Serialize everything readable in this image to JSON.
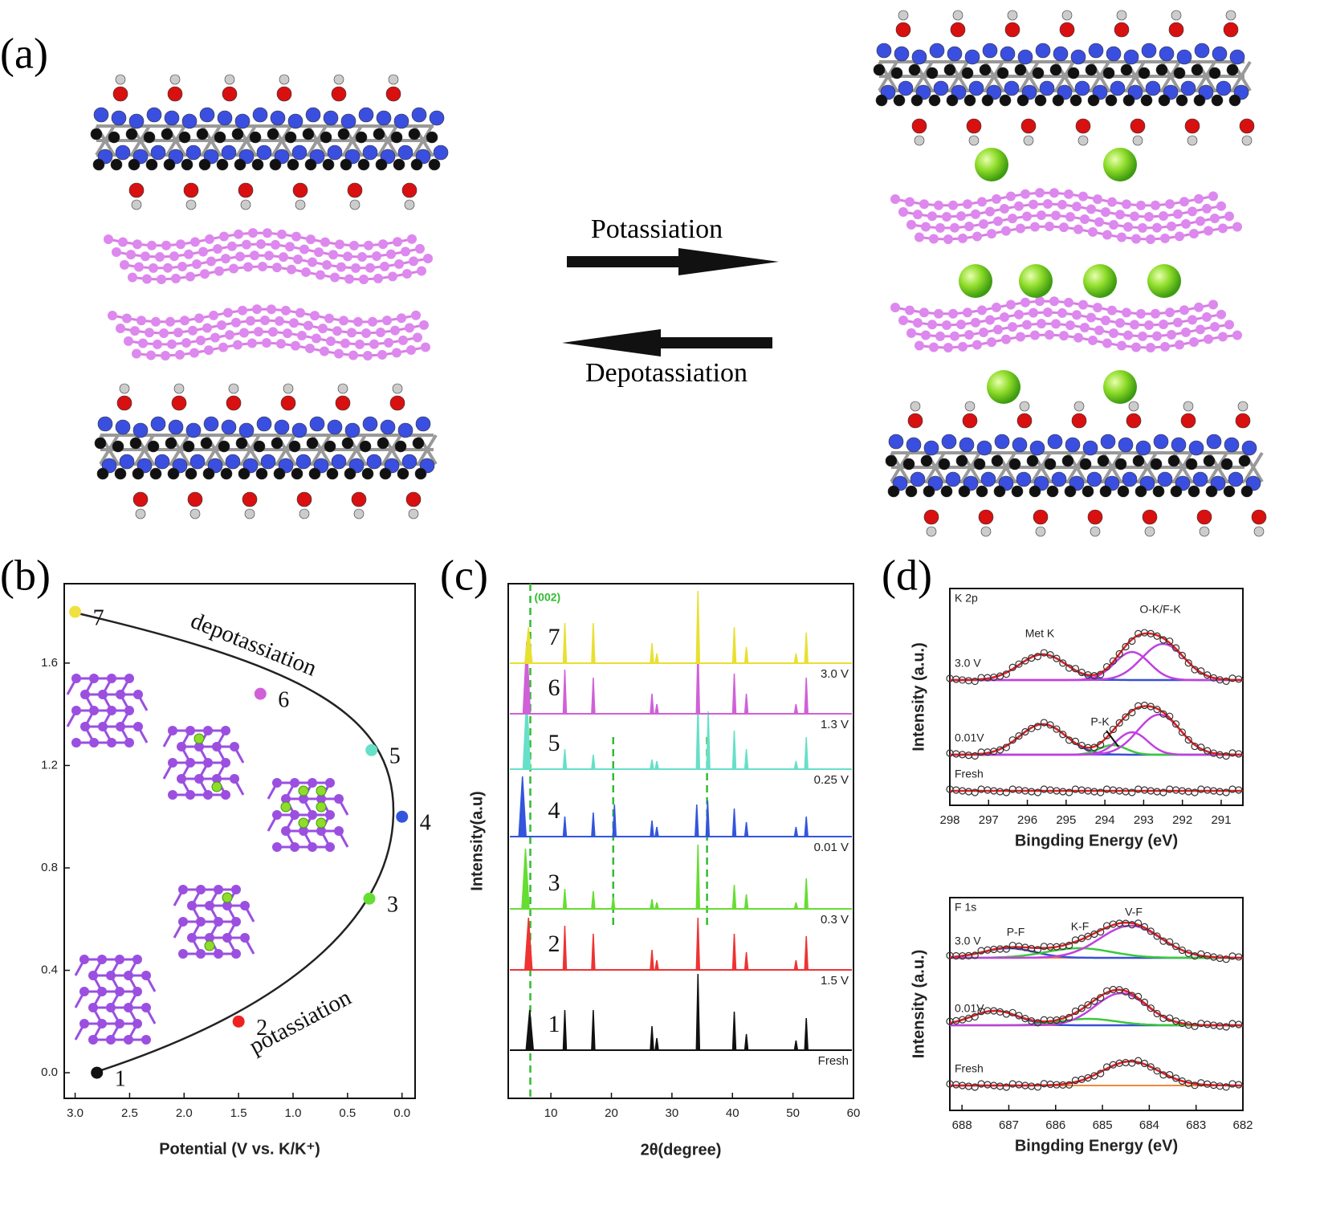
{
  "panel_a": {
    "label": "(a)",
    "forward": "Potassiation",
    "backward": "Depotassiation"
  },
  "chart_data": [
    {
      "type": "scatter",
      "label": "(b)",
      "xlabel": "Potential (V vs. K/K⁺)",
      "xlim": [
        3.1,
        -0.12
      ],
      "ylim": [
        -0.1,
        1.91
      ],
      "xticks": [
        {
          "value": 3,
          "label": "3.0"
        },
        {
          "value": 2.5,
          "label": "2.5"
        },
        {
          "value": 2,
          "label": "2.0"
        },
        {
          "value": 1.5,
          "label": "1.5"
        },
        {
          "value": 1,
          "label": "1.0"
        },
        {
          "value": 0.5,
          "label": "0.5"
        },
        {
          "value": 0,
          "label": "0.0"
        }
      ],
      "yticks": [
        {
          "value": 0,
          "label": "0.0"
        },
        0.4,
        0.8,
        1.2,
        1.6
      ],
      "annotations": [
        "depotassiation",
        "potassiation"
      ],
      "point_labels": [
        "1",
        "2",
        "3",
        "4",
        "5",
        "6",
        "7"
      ],
      "x": [
        2.8,
        1.5,
        0.3,
        0.0,
        0.28,
        1.3,
        3.0
      ],
      "values": [
        0.0,
        0.2,
        0.68,
        1.0,
        1.26,
        1.48,
        1.8
      ],
      "colors": [
        "#111111",
        "#ee2222",
        "#66dd33",
        "#3355dd",
        "#66e0c8",
        "#d060d8",
        "#f0e040"
      ]
    },
    {
      "type": "xrd",
      "label": "(c)",
      "xlabel": "2θ(degree)",
      "ylabel": "Intensity(a.u)",
      "xlim": [
        2.95,
        60
      ],
      "xticks": [
        10,
        20,
        30,
        40,
        50,
        60
      ],
      "ref_lines": [
        {
          "x": 6.6,
          "label": "(002)"
        },
        {
          "x": 20.3
        },
        {
          "x": 35.8
        }
      ],
      "series": [
        {
          "name": "Fresh",
          "label": "1",
          "color": "#111111",
          "x": [
            6.5,
            12.3,
            17,
            26.7,
            27.5,
            34.3,
            40.3,
            42.3,
            50.5,
            52.2
          ],
          "values": [
            50,
            50,
            50,
            30,
            15,
            95,
            48,
            20,
            12,
            40
          ]
        },
        {
          "name": "1.5 V",
          "label": "2",
          "color": "#ee3333",
          "x": [
            6.3,
            12.3,
            17,
            26.7,
            27.5,
            34.3,
            40.3,
            42.3,
            50.5,
            52.2
          ],
          "values": [
            65,
            55,
            45,
            25,
            12,
            65,
            45,
            22,
            12,
            42
          ]
        },
        {
          "name": "0.3 V",
          "label": "3",
          "color": "#66dd33",
          "x": [
            5.8,
            12.3,
            17,
            20.3,
            26.7,
            27.5,
            34.3,
            40.3,
            42.3,
            50.5,
            52.2
          ],
          "values": [
            75,
            25,
            22,
            15,
            12,
            8,
            80,
            30,
            18,
            8,
            38
          ]
        },
        {
          "name": "0.01 V",
          "label": "4",
          "color": "#3355dd",
          "x": [
            5.3,
            12.3,
            17,
            20.5,
            26.7,
            27.5,
            34.1,
            35.9,
            40.3,
            42.3,
            50.5,
            52.2
          ],
          "values": [
            75,
            25,
            30,
            40,
            20,
            12,
            40,
            45,
            35,
            18,
            12,
            25
          ]
        },
        {
          "name": "0.25 V",
          "label": "5",
          "color": "#66e0c8",
          "x": [
            6.0,
            12.3,
            17,
            26.7,
            27.5,
            34.3,
            36.0,
            40.3,
            42.3,
            50.5,
            52.2
          ],
          "values": [
            90,
            25,
            18,
            12,
            10,
            82,
            72,
            48,
            25,
            10,
            40
          ]
        },
        {
          "name": "1.3 V",
          "label": "6",
          "color": "#d060d8",
          "x": [
            6.0,
            12.3,
            17,
            26.7,
            27.5,
            34.3,
            40.3,
            42.3,
            50.5,
            52.2
          ],
          "values": [
            90,
            55,
            45,
            25,
            12,
            85,
            50,
            25,
            12,
            45
          ]
        },
        {
          "name": "3.0 V",
          "label": "7",
          "color": "#e8e030",
          "x": [
            6.3,
            12.3,
            17,
            26.7,
            27.5,
            34.3,
            40.3,
            42.3,
            50.5,
            52.2
          ],
          "values": [
            45,
            50,
            50,
            25,
            12,
            90,
            45,
            20,
            12,
            38
          ]
        }
      ]
    },
    {
      "type": "xps",
      "label": "(d)",
      "title": "K 2p",
      "xlabel": "Bingding Energy (eV)",
      "ylabel": "Intensity (a.u.)",
      "xlim": [
        298,
        290.44
      ],
      "xticks": [
        298,
        297,
        296,
        295,
        294,
        293,
        292,
        291
      ],
      "annotations": [
        "Met K",
        "O-K/F-K",
        "P-K"
      ],
      "series": [
        {
          "name": "Fresh"
        },
        {
          "name": "0.01V",
          "components": [
            {
              "color": "#3a4fd6",
              "center": 295.6,
              "height": 38,
              "width": 0.6
            },
            {
              "color": "#3cc83c",
              "center": 293.8,
              "height": 12,
              "width": 0.35
            },
            {
              "color": "#c040e0",
              "center": 293.3,
              "height": 28,
              "width": 0.4
            },
            {
              "color": "#c040e0",
              "center": 292.6,
              "height": 50,
              "width": 0.55
            }
          ]
        },
        {
          "name": "3.0 V",
          "components": [
            {
              "color": "#3a4fd6",
              "center": 295.6,
              "height": 32,
              "width": 0.6
            },
            {
              "color": "#c040e0",
              "center": 293.3,
              "height": 35,
              "width": 0.45
            },
            {
              "color": "#c040e0",
              "center": 292.5,
              "height": 45,
              "width": 0.55
            }
          ]
        }
      ]
    },
    {
      "type": "xps",
      "title": "F 1s",
      "xlabel": "Bingding Energy (eV)",
      "ylabel": "Intensity (a.u.)",
      "xlim": [
        688.26,
        682
      ],
      "xticks": [
        688,
        687,
        686,
        685,
        684,
        683,
        682
      ],
      "annotations": [
        "P-F",
        "K-F",
        "V-F"
      ],
      "series": [
        {
          "name": "Fresh",
          "components": [
            {
              "color": "#c040e0",
              "center": 684.4,
              "height": 30,
              "width": 0.6
            }
          ]
        },
        {
          "name": "0.01V",
          "components": [
            {
              "color": "#3a4fd6",
              "center": 687.3,
              "height": 18,
              "width": 0.5
            },
            {
              "color": "#3cc83c",
              "center": 685.3,
              "height": 8,
              "width": 0.6
            },
            {
              "color": "#c040e0",
              "center": 684.6,
              "height": 40,
              "width": 0.55
            }
          ]
        },
        {
          "name": "3.0 V",
          "components": [
            {
              "color": "#3a4fd6",
              "center": 687.0,
              "height": 12,
              "width": 0.55
            },
            {
              "color": "#3cc83c",
              "center": 685.5,
              "height": 12,
              "width": 0.7
            },
            {
              "color": "#c040e0",
              "center": 684.4,
              "height": 40,
              "width": 0.65
            }
          ]
        }
      ]
    }
  ]
}
